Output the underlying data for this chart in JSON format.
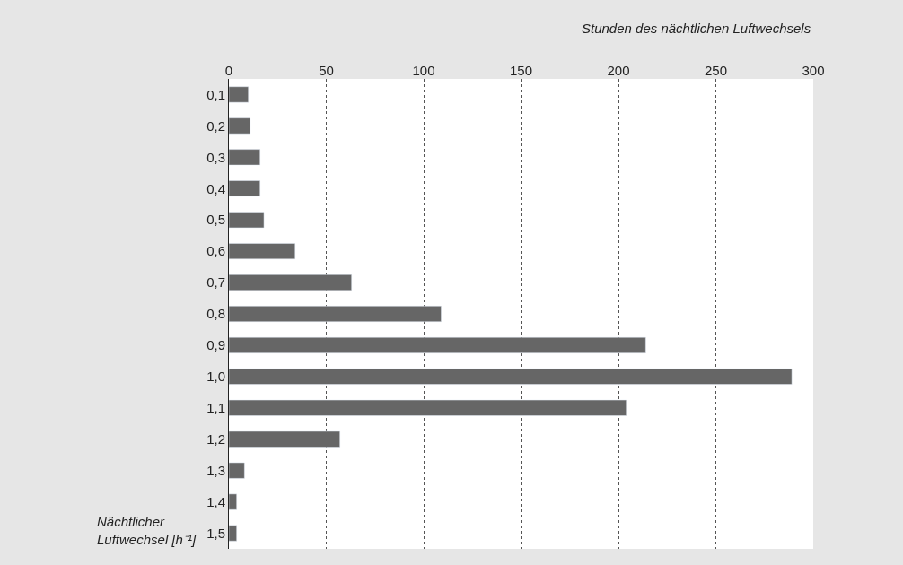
{
  "chart_data": {
    "type": "bar",
    "orientation": "horizontal",
    "xlabel": "Stunden des nächtlichen Luftwechsels",
    "ylabel": "Nächtlicher\nLuftwechsel [h⁻¹]",
    "categories": [
      "0,1",
      "0,2",
      "0,3",
      "0,4",
      "0,5",
      "0,6",
      "0,7",
      "0,8",
      "0,9",
      "1,0",
      "1,1",
      "1,2",
      "1,3",
      "1,4",
      "1,5"
    ],
    "values": [
      10,
      11,
      16,
      16,
      18,
      34,
      63,
      109,
      214,
      289,
      204,
      57,
      8,
      4,
      4
    ],
    "color": "#666666",
    "xlim": [
      0,
      300
    ],
    "xticks": [
      0,
      50,
      100,
      150,
      200,
      250,
      300
    ],
    "grid": "x"
  }
}
